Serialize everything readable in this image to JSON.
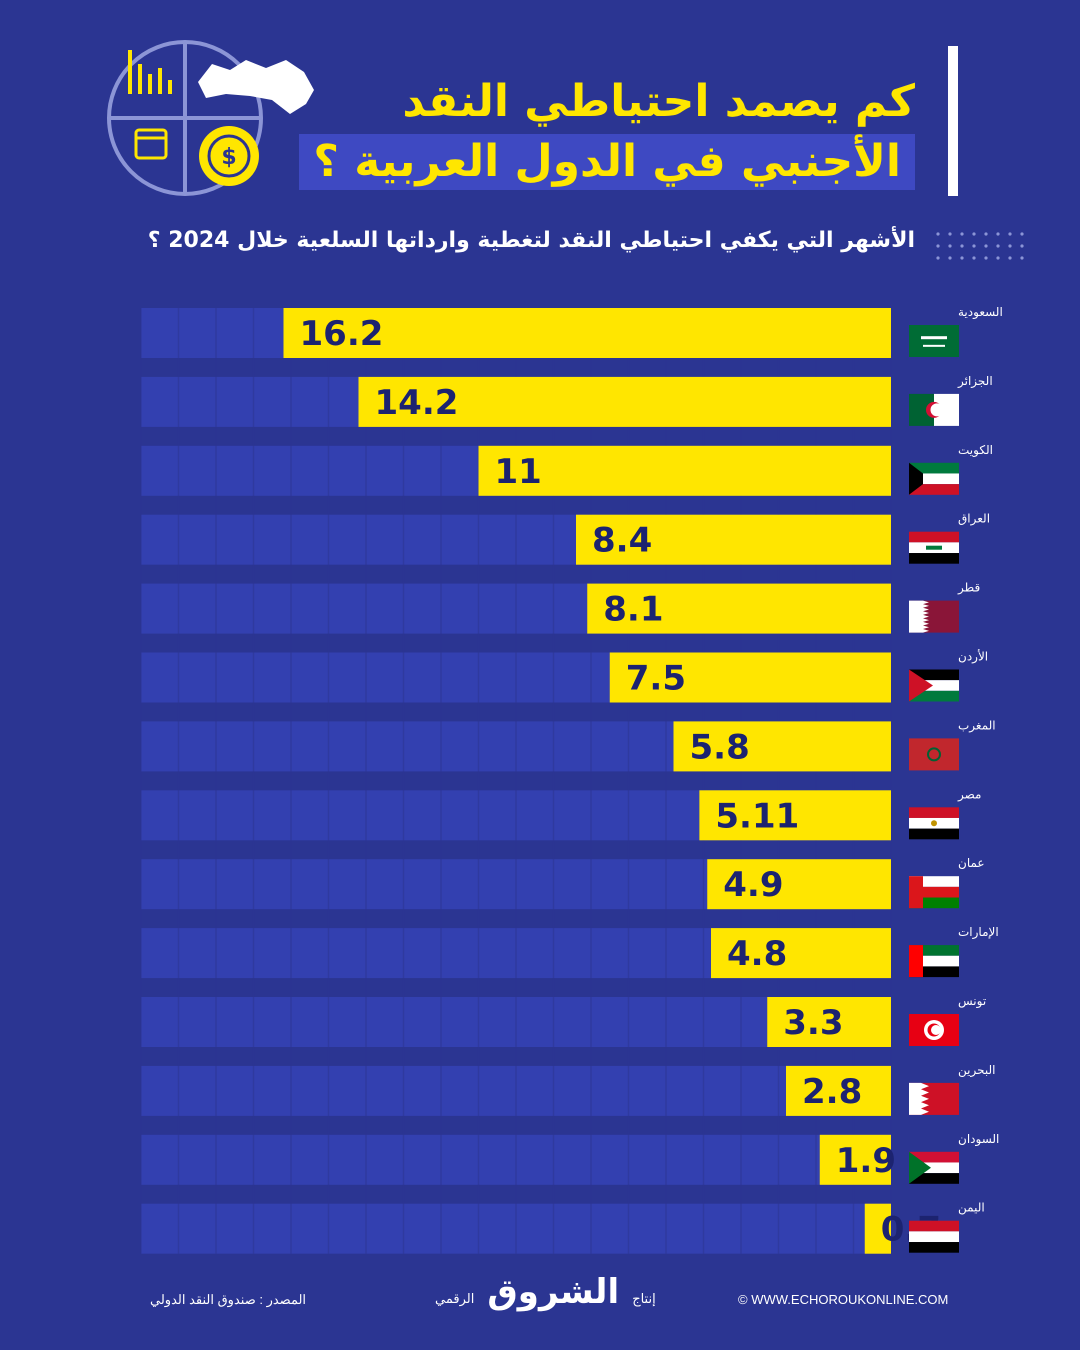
{
  "header": {
    "title_line1": "كم يصمد احتياطي النقد",
    "title_line2": "الأجنبي في الدول العربية ؟",
    "subtitle": "الأشهر التي يكفي احتياطي النقد لتغطية وارداتها السلعية خلال 2024 ؟"
  },
  "colors": {
    "background": "#2b3592",
    "bar": "#ffe600",
    "bar_track": "#3340b0",
    "title": "#ffe600",
    "text": "#ffffff"
  },
  "chart_data": {
    "type": "bar",
    "orientation": "horizontal",
    "direction": "right-to-left",
    "categories": [
      "السعودية",
      "الجزائر",
      "الكويت",
      "العراق",
      "قطر",
      "الأردن",
      "المغرب",
      "مصر",
      "عمان",
      "الإمارات",
      "تونس",
      "البحرين",
      "السودان",
      "اليمن"
    ],
    "values": [
      16.2,
      14.2,
      11,
      8.4,
      8.1,
      7.5,
      5.8,
      5.11,
      4.9,
      4.8,
      3.3,
      2.8,
      1.9,
      0.7
    ],
    "value_labels": [
      "16.2",
      "14.2",
      "11",
      "8.4",
      "8.1",
      "7.5",
      "5.8",
      "5.11",
      "4.9",
      "4.8",
      "3.3",
      "2.8",
      "1.9",
      "0.7"
    ],
    "flags": [
      "flag-saudi-arabia",
      "flag-algeria",
      "flag-kuwait",
      "flag-iraq",
      "flag-qatar",
      "flag-jordan",
      "flag-morocco",
      "flag-egypt",
      "flag-oman",
      "flag-uae",
      "flag-tunisia",
      "flag-bahrain",
      "flag-sudan",
      "flag-yemen"
    ],
    "xlim": [
      0,
      20
    ],
    "grid": true
  },
  "footer": {
    "source": "المصدر : صندوق النقد الدولي",
    "production": "إنتاج",
    "brand": "الشروق",
    "digital": "الرقمي",
    "website": "© WWW.ECHOROUKONLINE.COM"
  }
}
